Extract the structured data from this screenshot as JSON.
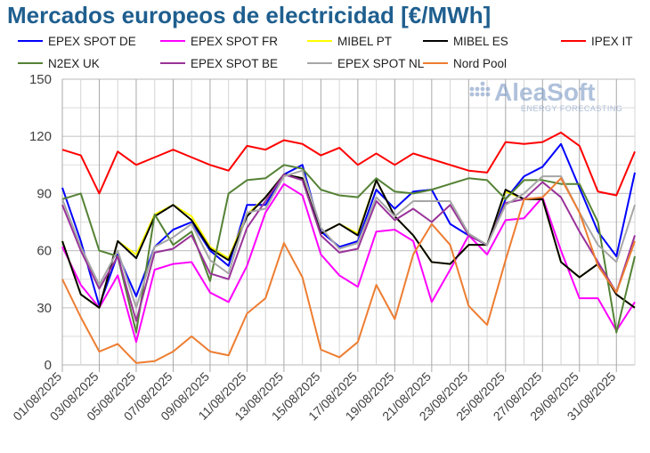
{
  "chart_data": {
    "type": "line",
    "title": "Mercados europeos de electricidad [€/MWh]",
    "xlabel": "",
    "ylabel": "",
    "ylim": [
      0,
      150
    ],
    "yticks": [
      0,
      30,
      60,
      90,
      120,
      150
    ],
    "grid": true,
    "legend_position": "top",
    "x": [
      "01/08/2025",
      "02/08/2025",
      "03/08/2025",
      "04/08/2025",
      "05/08/2025",
      "06/08/2025",
      "07/08/2025",
      "08/08/2025",
      "09/08/2025",
      "10/08/2025",
      "11/08/2025",
      "12/08/2025",
      "13/08/2025",
      "14/08/2025",
      "15/08/2025",
      "16/08/2025",
      "17/08/2025",
      "18/08/2025",
      "19/08/2025",
      "20/08/2025",
      "21/08/2025",
      "22/08/2025",
      "23/08/2025",
      "24/08/2025",
      "25/08/2025",
      "26/08/2025",
      "27/08/2025",
      "28/08/2025",
      "29/08/2025",
      "30/08/2025",
      "31/08/2025",
      "01/09/2025"
    ],
    "xtick_labels": [
      "01/08/2025",
      "03/08/2025",
      "05/08/2025",
      "07/08/2025",
      "09/08/2025",
      "11/08/2025",
      "13/08/2025",
      "15/08/2025",
      "17/08/2025",
      "19/08/2025",
      "21/08/2025",
      "23/08/2025",
      "25/08/2025",
      "27/08/2025",
      "29/08/2025",
      "31/08/2025"
    ],
    "series": [
      {
        "name": "EPEX SPOT DE",
        "color": "#0000ff",
        "values": [
          93,
          65,
          31,
          58,
          36,
          62,
          71,
          75,
          60,
          52,
          84,
          84,
          100,
          105,
          70,
          62,
          65,
          92,
          82,
          91,
          92,
          74,
          68,
          63,
          87,
          99,
          104,
          116,
          93,
          70,
          57,
          101
        ]
      },
      {
        "name": "EPEX SPOT FR",
        "color": "#ff00ff",
        "values": [
          62,
          42,
          30,
          47,
          12,
          50,
          53,
          54,
          38,
          33,
          52,
          80,
          95,
          89,
          58,
          47,
          41,
          70,
          71,
          65,
          33,
          50,
          68,
          58,
          76,
          77,
          88,
          60,
          35,
          35,
          18,
          33
        ]
      },
      {
        "name": "MIBEL PT",
        "color": "#ffff00",
        "values": [
          65,
          37,
          30,
          65,
          58,
          79,
          84,
          78,
          62,
          56,
          79,
          88,
          100,
          98,
          69,
          74,
          69,
          97,
          78,
          68,
          54,
          53,
          63,
          63,
          91,
          87,
          87,
          54,
          46,
          53,
          37,
          30
        ]
      },
      {
        "name": "MIBEL ES",
        "color": "#000000",
        "values": [
          65,
          37,
          30,
          65,
          56,
          78,
          84,
          76,
          61,
          55,
          78,
          88,
          100,
          98,
          69,
          74,
          68,
          97,
          78,
          68,
          54,
          53,
          63,
          63,
          92,
          87,
          87,
          54,
          46,
          53,
          37,
          30
        ]
      },
      {
        "name": "IPEX IT",
        "color": "#ff0000",
        "values": [
          113,
          110,
          90,
          112,
          105,
          109,
          113,
          109,
          105,
          102,
          115,
          113,
          118,
          116,
          110,
          114,
          105,
          111,
          105,
          111,
          108,
          105,
          102,
          101,
          117,
          116,
          117,
          122,
          115,
          91,
          89,
          112
        ]
      },
      {
        "name": "N2EX UK",
        "color": "#548235",
        "values": [
          87,
          90,
          60,
          57,
          17,
          79,
          63,
          70,
          44,
          90,
          97,
          98,
          105,
          103,
          92,
          89,
          88,
          98,
          91,
          90,
          92,
          95,
          98,
          97,
          87,
          97,
          97,
          95,
          95,
          75,
          17,
          57
        ]
      },
      {
        "name": "EPEX SPOT BE",
        "color": "#993399",
        "values": [
          84,
          60,
          40,
          57,
          23,
          59,
          61,
          68,
          48,
          45,
          72,
          86,
          100,
          97,
          68,
          59,
          61,
          86,
          76,
          82,
          75,
          84,
          68,
          63,
          85,
          87,
          96,
          88,
          70,
          54,
          38,
          68
        ]
      },
      {
        "name": "EPEX SPOT NL",
        "color": "#a6a6a6",
        "values": [
          87,
          62,
          42,
          60,
          30,
          62,
          67,
          74,
          55,
          48,
          80,
          82,
          99,
          102,
          72,
          61,
          64,
          88,
          78,
          86,
          86,
          86,
          69,
          63,
          84,
          90,
          99,
          99,
          80,
          63,
          54,
          84
        ]
      },
      {
        "name": "Nord Pool",
        "color": "#ed7d31",
        "values": [
          45,
          25,
          7,
          11,
          1,
          2,
          7,
          15,
          7,
          5,
          27,
          35,
          64,
          46,
          8,
          4,
          12,
          42,
          24,
          58,
          74,
          63,
          31,
          21,
          55,
          87,
          88,
          98,
          80,
          52,
          38,
          65
        ]
      }
    ]
  },
  "logo": {
    "name": "AleaSoft",
    "tagline": "ENERGY FORECASTING"
  }
}
